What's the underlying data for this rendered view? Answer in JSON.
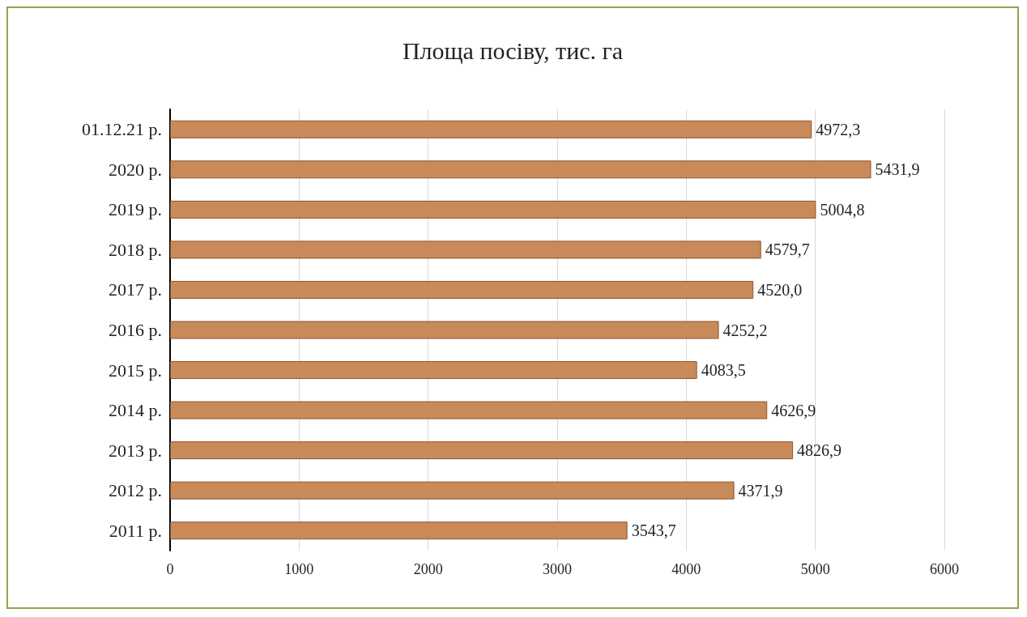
{
  "chart_data": {
    "type": "bar",
    "orientation": "horizontal",
    "title": "Площа посіву, тис. га",
    "categories": [
      "01.12.21 р.",
      "2020 р.",
      "2019 р.",
      "2018 р.",
      "2017 р.",
      "2016 р.",
      "2015 р.",
      "2014 р.",
      "2013 р.",
      "2012 р.",
      "2011 р."
    ],
    "values": [
      4972.3,
      5431.9,
      5004.8,
      4579.7,
      4520.0,
      4252.2,
      4083.5,
      4626.9,
      4826.9,
      4371.9,
      3543.7
    ],
    "value_labels": [
      "4972,3",
      "5431,9",
      "5004,8",
      "4579,7",
      "4520,0",
      "4252,2",
      "4083,5",
      "4626,9",
      "4826,9",
      "4371,9",
      "3543,7"
    ],
    "color": "#c98a5a",
    "xlim": [
      0,
      6000
    ],
    "xticks": [
      0,
      1000,
      2000,
      3000,
      4000,
      5000,
      6000
    ],
    "grid": "x"
  }
}
